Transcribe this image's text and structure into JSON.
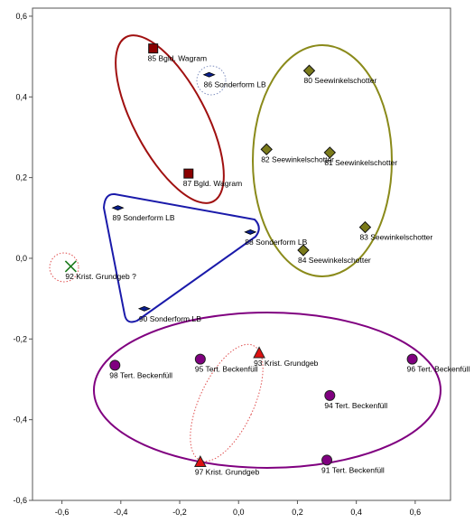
{
  "chart_data": {
    "type": "scatter",
    "title": "",
    "xlabel": "",
    "ylabel": "",
    "xlim": [
      -0.7,
      0.72
    ],
    "ylim": [
      -0.6,
      0.62
    ],
    "xticks": [
      -0.6,
      -0.4,
      -0.2,
      0.0,
      0.2,
      0.4,
      0.6
    ],
    "xtick_labels": [
      "-0,6",
      "-0,4",
      "-0,2",
      "0,0",
      "0,2",
      "0,4",
      "0,6"
    ],
    "yticks": [
      0.6,
      0.4,
      0.2,
      0.0,
      -0.2,
      -0.4,
      -0.6
    ],
    "ytick_labels": [
      "0,6",
      "0,4",
      "0,2",
      "0,0",
      "-0,2",
      "-0,4",
      "-0,6"
    ],
    "grid": false,
    "legend": "none",
    "points": [
      {
        "label": "85 Bgld. Wagram",
        "x": -0.29,
        "y": 0.52,
        "marker": "square",
        "color": "#8b0000"
      },
      {
        "label": "87 Bgld. Wagram",
        "x": -0.17,
        "y": 0.21,
        "marker": "square",
        "color": "#8b0000"
      },
      {
        "label": "86 Sonderform LB",
        "x": -0.1,
        "y": 0.455,
        "marker": "diamond-small",
        "color": "#0a1f8f"
      },
      {
        "label": "89 Sonderform LB",
        "x": -0.41,
        "y": 0.125,
        "marker": "diamond-small",
        "color": "#0a1f8f"
      },
      {
        "label": "88 Sonderform LB",
        "x": 0.04,
        "y": 0.065,
        "marker": "diamond-small",
        "color": "#0a1f8f"
      },
      {
        "label": "90 Sonderform LB",
        "x": -0.32,
        "y": -0.125,
        "marker": "diamond-small",
        "color": "#0a1f8f"
      },
      {
        "label": "80 Seewinkelschotter",
        "x": 0.24,
        "y": 0.465,
        "marker": "diamond",
        "color": "#7a7a1a"
      },
      {
        "label": "82 Seewinkelschotter",
        "x": 0.095,
        "y": 0.27,
        "marker": "diamond",
        "color": "#7a7a1a"
      },
      {
        "label": "81 Seewinkelschotter",
        "x": 0.31,
        "y": 0.262,
        "marker": "diamond",
        "color": "#7a7a1a"
      },
      {
        "label": "83 Seewinkelschotter",
        "x": 0.43,
        "y": 0.077,
        "marker": "diamond",
        "color": "#7a7a1a"
      },
      {
        "label": "84 Seewinkelschotter",
        "x": 0.22,
        "y": 0.02,
        "marker": "diamond",
        "color": "#7a7a1a"
      },
      {
        "label": "92 Krist. Grundgeb ?",
        "x": -0.57,
        "y": -0.02,
        "marker": "x",
        "color": "#1a7a1a"
      },
      {
        "label": "93 Krist. Grundgeb",
        "x": 0.07,
        "y": -0.235,
        "marker": "triangle",
        "color": "#dd1111"
      },
      {
        "label": "97 Krist. Grundgeb",
        "x": -0.13,
        "y": -0.505,
        "marker": "triangle",
        "color": "#dd1111"
      },
      {
        "label": "98 Tert. Beckenfüll",
        "x": -0.42,
        "y": -0.265,
        "marker": "circle",
        "color": "#800080"
      },
      {
        "label": "95 Tert. Beckenfüll",
        "x": -0.13,
        "y": -0.25,
        "marker": "circle",
        "color": "#800080"
      },
      {
        "label": "96 Tert. Beckenfüll",
        "x": 0.59,
        "y": -0.25,
        "marker": "circle",
        "color": "#800080"
      },
      {
        "label": "94 Tert. Beckenfüll",
        "x": 0.31,
        "y": -0.34,
        "marker": "circle",
        "color": "#800080"
      },
      {
        "label": "91 Tert. Beckenfüll",
        "x": 0.3,
        "y": -0.5,
        "marker": "circle",
        "color": "#800080"
      }
    ]
  },
  "groups": [
    {
      "name": "wagram-ellipse",
      "color": "#a01010"
    },
    {
      "name": "sonderform-hull",
      "color": "#1a1aaa"
    },
    {
      "name": "seewinkel-ellipse",
      "color": "#8a8a1a"
    },
    {
      "name": "tertiaer-ellipse",
      "color": "#800080"
    },
    {
      "name": "kristallin-ellipse",
      "color": "#e05050"
    },
    {
      "name": "sonderform86-circle",
      "color": "#8090c0"
    },
    {
      "name": "kristallin92-circle",
      "color": "#e05050"
    }
  ]
}
